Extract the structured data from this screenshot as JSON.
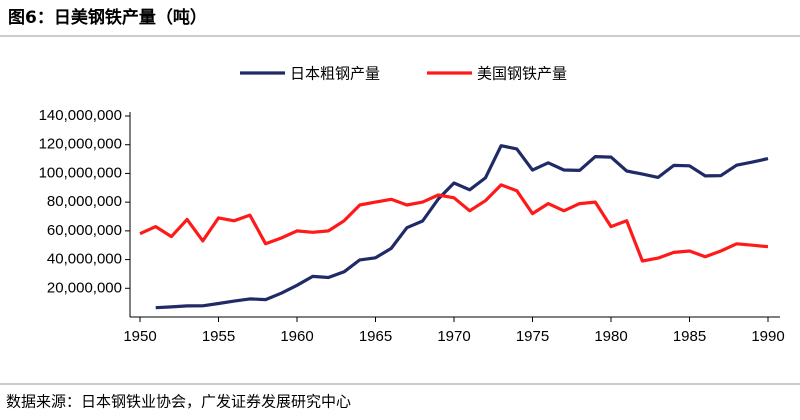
{
  "chart_data": {
    "type": "line",
    "title": "图6：日美钢铁产量（吨）",
    "source": "数据来源：日本钢铁业协会，广发证券发展研究中心",
    "x": [
      1950,
      1951,
      1952,
      1953,
      1954,
      1955,
      1956,
      1957,
      1958,
      1959,
      1960,
      1961,
      1962,
      1963,
      1964,
      1965,
      1966,
      1967,
      1968,
      1969,
      1970,
      1971,
      1972,
      1973,
      1974,
      1975,
      1976,
      1977,
      1978,
      1979,
      1980,
      1981,
      1982,
      1983,
      1984,
      1985,
      1986,
      1987,
      1988,
      1989,
      1990
    ],
    "series": [
      {
        "name": "日本粗钢产量",
        "color": "#1f2a66",
        "values": [
          null,
          6500000,
          7000000,
          7700000,
          7800000,
          9400000,
          11100000,
          12600000,
          12100000,
          16600000,
          22100000,
          28300000,
          27500000,
          31500000,
          39800000,
          41200000,
          47800000,
          62200000,
          66900000,
          82200000,
          93300000,
          88600000,
          96900000,
          119300000,
          117100000,
          102300000,
          107400000,
          102400000,
          102100000,
          111700000,
          111400000,
          101700000,
          99500000,
          97200000,
          105600000,
          105300000,
          98300000,
          98500000,
          105700000,
          107900000,
          110300000
        ]
      },
      {
        "name": "美国钢铁产量",
        "color": "#ff1a1a",
        "values": [
          58000000,
          63000000,
          56000000,
          68000000,
          53000000,
          69000000,
          67000000,
          71000000,
          51000000,
          55000000,
          60000000,
          59000000,
          60000000,
          67000000,
          78000000,
          80000000,
          82000000,
          78000000,
          80000000,
          85000000,
          83000000,
          74000000,
          81000000,
          92000000,
          88000000,
          72000000,
          79000000,
          74000000,
          79000000,
          80000000,
          63000000,
          67000000,
          39000000,
          41000000,
          45000000,
          46000000,
          42000000,
          46000000,
          51000000,
          50000000,
          49000000
        ]
      }
    ],
    "xlim": [
      1950,
      1990
    ],
    "xticks": [
      1950,
      1955,
      1960,
      1965,
      1970,
      1975,
      1980,
      1985,
      1990
    ],
    "ylim": [
      0,
      140000000
    ],
    "yticks": [
      {
        "value": 20000000,
        "label": "20,000,000"
      },
      {
        "value": 40000000,
        "label": "40,000,000"
      },
      {
        "value": 60000000,
        "label": "60,000,000"
      },
      {
        "value": 80000000,
        "label": "80,000,000"
      },
      {
        "value": 100000000,
        "label": "100,000,000"
      },
      {
        "value": 120000000,
        "label": "120,000,000"
      },
      {
        "value": 140000000,
        "label": "140,000,000"
      }
    ],
    "grid": false,
    "legend": "top"
  }
}
